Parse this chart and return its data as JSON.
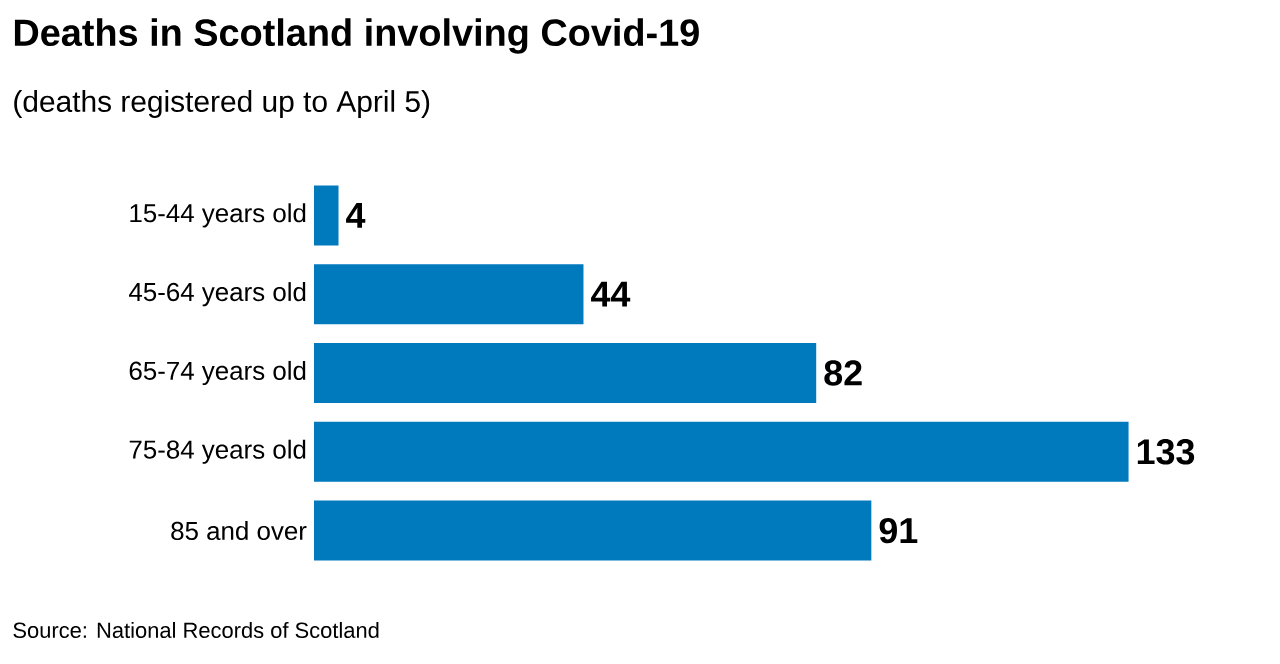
{
  "chart_data": {
    "type": "bar",
    "orientation": "horizontal",
    "title": "Deaths in Scotland involving Covid-19",
    "subtitle": "(deaths registered up to April 5)",
    "categories": [
      "15-44 years old",
      "45-64 years old",
      "65-74 years old",
      "75-84 years old",
      "85 and over"
    ],
    "values": [
      4,
      44,
      82,
      133,
      91
    ],
    "color": "#0079bd",
    "data_labels": true,
    "annotations": [
      "Source: National Records of Scotland"
    ]
  }
}
